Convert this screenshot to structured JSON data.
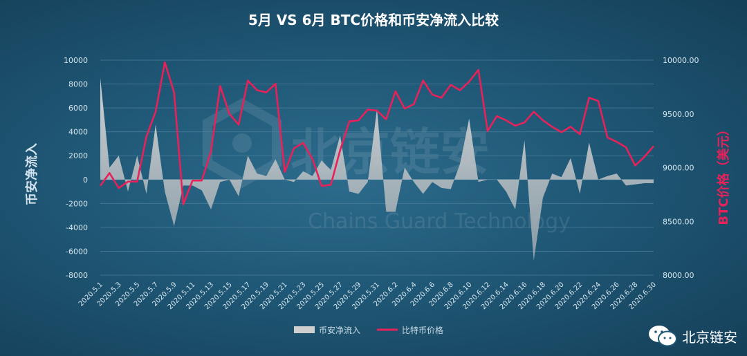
{
  "chart_data": {
    "type": "area+line",
    "title": "5月 VS 6月 BTC价格和币安净流入比较",
    "ylabel_left": "币安净流入",
    "ylabel_right": "BTC价格（美元）",
    "left_axis": {
      "ylim": [
        -8000,
        10000
      ],
      "ticks": [
        "10000",
        "8000",
        "6000",
        "4000",
        "2000",
        "0",
        "-2000",
        "-4000",
        "-6000",
        "-8000"
      ]
    },
    "right_axis": {
      "ylim": [
        8000,
        10000
      ],
      "ticks": [
        "10000.00",
        "9500.00",
        "9000.00",
        "8500.00",
        "8000.00"
      ]
    },
    "x_tick_labels": [
      "2020.5.1",
      "2020.5.3",
      "2020.5.5",
      "2020.5.7",
      "2020.5.9",
      "2020.5.11",
      "2020.5.13",
      "2020.5.15",
      "2020.5.17",
      "2020.5.19",
      "2020.5.21",
      "2020.5.23",
      "2020.5.25",
      "2020.5.27",
      "2020.5.29",
      "2020.5.31",
      "2020.6.2",
      "2020.6.4",
      "2020.6.6",
      "2020.6.8",
      "2020.6.10",
      "2020.6.12",
      "2020.6.14",
      "2020.6.16",
      "2020.6.18",
      "2020.6.20",
      "2020.6.22",
      "2020.6.24",
      "2020.6.26",
      "2020.6.28",
      "2020.6.30"
    ],
    "legend": [
      "币安净流入",
      "比特币价格"
    ],
    "series": [
      {
        "name": "币安净流入",
        "style": "area",
        "color": "#cfcfcf",
        "values": [
          8500,
          1000,
          2000,
          -1000,
          2000,
          -1200,
          4600,
          -1000,
          -3900,
          -500,
          -500,
          -900,
          -2500,
          -200,
          0,
          -1400,
          2000,
          500,
          300,
          1700,
          0,
          -200,
          700,
          300,
          1600,
          800,
          3700,
          -1000,
          -1200,
          -200,
          5900,
          -2700,
          -2700,
          1000,
          -200,
          -1200,
          -200,
          -700,
          -800,
          1300,
          5100,
          -200,
          0,
          0,
          -1000,
          -2500,
          3300,
          -6800,
          -1500,
          500,
          200,
          1800,
          -1200,
          3100,
          0,
          300,
          500,
          -500,
          -400,
          -300,
          -300
        ]
      },
      {
        "name": "比特币价格",
        "style": "line",
        "color": "#e8215a",
        "values": [
          8830,
          8950,
          8810,
          8870,
          8870,
          9290,
          9520,
          9980,
          9700,
          8660,
          8880,
          8880,
          9150,
          9760,
          9500,
          9400,
          9810,
          9720,
          9700,
          9780,
          8960,
          9180,
          9230,
          9080,
          8830,
          8840,
          9160,
          9430,
          9440,
          9540,
          9530,
          9450,
          9710,
          9550,
          9590,
          9810,
          9680,
          9650,
          9770,
          9720,
          9800,
          9910,
          9340,
          9480,
          9440,
          9390,
          9420,
          9520,
          9440,
          9380,
          9330,
          9380,
          9310,
          9650,
          9620,
          9280,
          9240,
          9190,
          9020,
          9100,
          9200
        ]
      }
    ]
  },
  "watermark": {
    "cn": "北京链安",
    "en": "Chains Guard Technology"
  },
  "wechat": {
    "name": "北京链安",
    "icon": "wechat-icon"
  },
  "colors": {
    "background": "#1f5876",
    "area": "#cfcfcf",
    "line": "#e8215a",
    "grid": "#4a7d98"
  }
}
